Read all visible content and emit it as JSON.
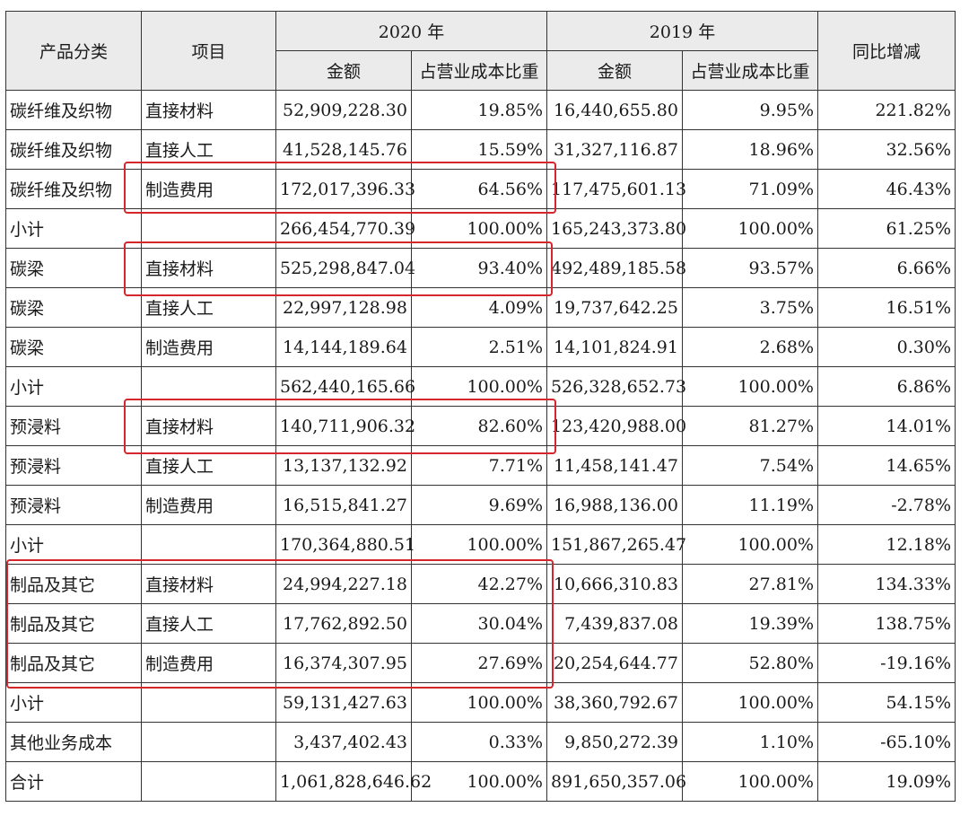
{
  "headers": {
    "category": "产品分类",
    "item": "项目",
    "year_2020": "2020 年",
    "year_2019": "2019 年",
    "yoy": "同比增减",
    "amount_2020": "金额",
    "ratio_2020": "占营业成本比重",
    "amount_2019": "金额",
    "ratio_2019": "占营业成本比重"
  },
  "rows": [
    {
      "category": "碳纤维及织物",
      "item": "直接材料",
      "amount_2020": "52,909,228.30",
      "ratio_2020": "19.85%",
      "amount_2019": "16,440,655.80",
      "ratio_2019": "9.95%",
      "yoy": "221.82%"
    },
    {
      "category": "碳纤维及织物",
      "item": "直接人工",
      "amount_2020": "41,528,145.76",
      "ratio_2020": "15.59%",
      "amount_2019": "31,327,116.87",
      "ratio_2019": "18.96%",
      "yoy": "32.56%"
    },
    {
      "category": "碳纤维及织物",
      "item": "制造费用",
      "amount_2020": "172,017,396.33",
      "ratio_2020": "64.56%",
      "amount_2019": "117,475,601.13",
      "ratio_2019": "71.09%",
      "yoy": "46.43%"
    },
    {
      "category": "小计",
      "item": "",
      "amount_2020": "266,454,770.39",
      "ratio_2020": "100.00%",
      "amount_2019": "165,243,373.80",
      "ratio_2019": "100.00%",
      "yoy": "61.25%"
    },
    {
      "category": "碳梁",
      "item": "直接材料",
      "amount_2020": "525,298,847.04",
      "ratio_2020": "93.40%",
      "amount_2019": "492,489,185.58",
      "ratio_2019": "93.57%",
      "yoy": "6.66%"
    },
    {
      "category": "碳梁",
      "item": "直接人工",
      "amount_2020": "22,997,128.98",
      "ratio_2020": "4.09%",
      "amount_2019": "19,737,642.25",
      "ratio_2019": "3.75%",
      "yoy": "16.51%"
    },
    {
      "category": "碳梁",
      "item": "制造费用",
      "amount_2020": "14,144,189.64",
      "ratio_2020": "2.51%",
      "amount_2019": "14,101,824.91",
      "ratio_2019": "2.68%",
      "yoy": "0.30%"
    },
    {
      "category": "小计",
      "item": "",
      "amount_2020": "562,440,165.66",
      "ratio_2020": "100.00%",
      "amount_2019": "526,328,652.73",
      "ratio_2019": "100.00%",
      "yoy": "6.86%"
    },
    {
      "category": "预浸料",
      "item": "直接材料",
      "amount_2020": "140,711,906.32",
      "ratio_2020": "82.60%",
      "amount_2019": "123,420,988.00",
      "ratio_2019": "81.27%",
      "yoy": "14.01%"
    },
    {
      "category": "预浸料",
      "item": "直接人工",
      "amount_2020": "13,137,132.92",
      "ratio_2020": "7.71%",
      "amount_2019": "11,458,141.47",
      "ratio_2019": "7.54%",
      "yoy": "14.65%"
    },
    {
      "category": "预浸料",
      "item": "制造费用",
      "amount_2020": "16,515,841.27",
      "ratio_2020": "9.69%",
      "amount_2019": "16,988,136.00",
      "ratio_2019": "11.19%",
      "yoy": "-2.78%"
    },
    {
      "category": "小计",
      "item": "",
      "amount_2020": "170,364,880.51",
      "ratio_2020": "100.00%",
      "amount_2019": "151,867,265.47",
      "ratio_2019": "100.00%",
      "yoy": "12.18%"
    },
    {
      "category": "制品及其它",
      "item": "直接材料",
      "amount_2020": "24,994,227.18",
      "ratio_2020": "42.27%",
      "amount_2019": "10,666,310.83",
      "ratio_2019": "27.81%",
      "yoy": "134.33%"
    },
    {
      "category": "制品及其它",
      "item": "直接人工",
      "amount_2020": "17,762,892.50",
      "ratio_2020": "30.04%",
      "amount_2019": "7,439,837.08",
      "ratio_2019": "19.39%",
      "yoy": "138.75%"
    },
    {
      "category": "制品及其它",
      "item": "制造费用",
      "amount_2020": "16,374,307.95",
      "ratio_2020": "27.69%",
      "amount_2019": "20,254,644.77",
      "ratio_2019": "52.80%",
      "yoy": "-19.16%"
    },
    {
      "category": "小计",
      "item": "",
      "amount_2020": "59,131,427.63",
      "ratio_2020": "100.00%",
      "amount_2019": "38,360,792.67",
      "ratio_2019": "100.00%",
      "yoy": "54.15%"
    },
    {
      "category": "其他业务成本",
      "item": "",
      "amount_2020": "3,437,402.43",
      "ratio_2020": "0.33%",
      "amount_2019": "9,850,272.39",
      "ratio_2019": "1.10%",
      "yoy": "-65.10%"
    },
    {
      "category": "合计",
      "item": "",
      "amount_2020": "1,061,828,646.62",
      "ratio_2020": "100.00%",
      "amount_2019": "891,650,357.06",
      "ratio_2019": "100.00%",
      "yoy": "19.09%"
    }
  ],
  "highlight_color": "#d6262d"
}
